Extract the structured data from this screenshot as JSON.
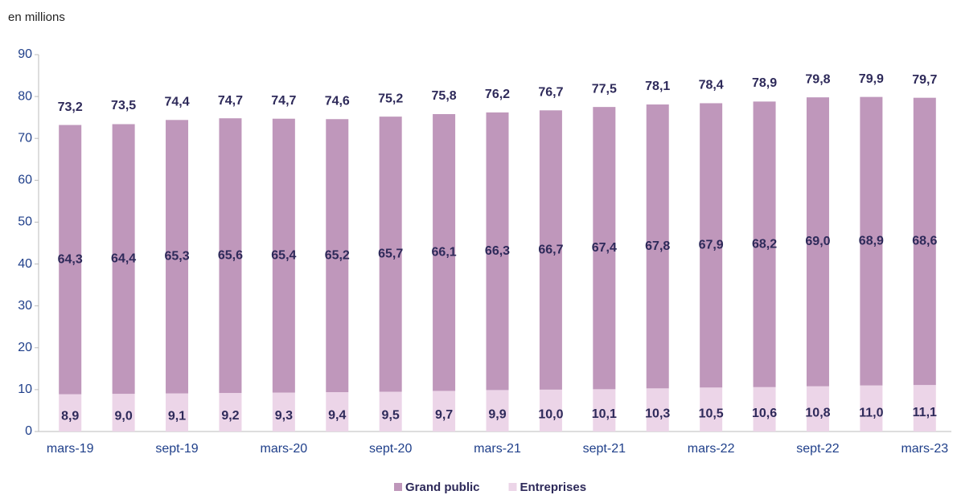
{
  "chart_data": {
    "type": "stacked_bar",
    "axis_label": "en millions",
    "categories": [
      "mars-19",
      null,
      "sept-19",
      null,
      "mars-20",
      null,
      "sept-20",
      null,
      "mars-21",
      null,
      "sept-21",
      null,
      "mars-22",
      null,
      "sept-22",
      null,
      "mars-23"
    ],
    "series": [
      {
        "name": "Entreprises",
        "color": "#ecd5e8",
        "values": [
          8.9,
          9.0,
          9.1,
          9.2,
          9.3,
          9.4,
          9.5,
          9.7,
          9.9,
          10.0,
          10.1,
          10.3,
          10.5,
          10.6,
          10.8,
          11.0,
          11.1
        ],
        "value_labels": [
          "8,9",
          "9,0",
          "9,1",
          "9,2",
          "9,3",
          "9,4",
          "9,5",
          "9,7",
          "9,9",
          "10,0",
          "10,1",
          "10,3",
          "10,5",
          "10,6",
          "10,8",
          "11,0",
          "11,1"
        ]
      },
      {
        "name": "Grand public",
        "color": "#bf97bb",
        "values": [
          64.3,
          64.4,
          65.3,
          65.6,
          65.4,
          65.2,
          65.7,
          66.1,
          66.3,
          66.7,
          67.4,
          67.8,
          67.9,
          68.2,
          69.0,
          68.9,
          68.6
        ],
        "value_labels": [
          "64,3",
          "64,4",
          "65,3",
          "65,6",
          "65,4",
          "65,2",
          "65,7",
          "66,1",
          "66,3",
          "66,7",
          "67,4",
          "67,8",
          "67,9",
          "68,2",
          "69,0",
          "68,9",
          "68,6"
        ]
      }
    ],
    "totals": [
      73.2,
      73.5,
      74.4,
      74.7,
      74.7,
      74.6,
      75.2,
      75.8,
      76.2,
      76.7,
      77.5,
      78.1,
      78.4,
      78.9,
      79.8,
      79.9,
      79.7
    ],
    "totals_labels": [
      "73,2",
      "73,5",
      "74,4",
      "74,7",
      "74,7",
      "74,6",
      "75,2",
      "75,8",
      "76,2",
      "76,7",
      "77,5",
      "78,1",
      "78,4",
      "78,9",
      "79,8",
      "79,9",
      "79,7"
    ],
    "ylim": [
      0,
      90
    ],
    "yticks": [
      0,
      10,
      20,
      30,
      40,
      50,
      60,
      70,
      80,
      90
    ],
    "legend_order": [
      1,
      0
    ]
  }
}
